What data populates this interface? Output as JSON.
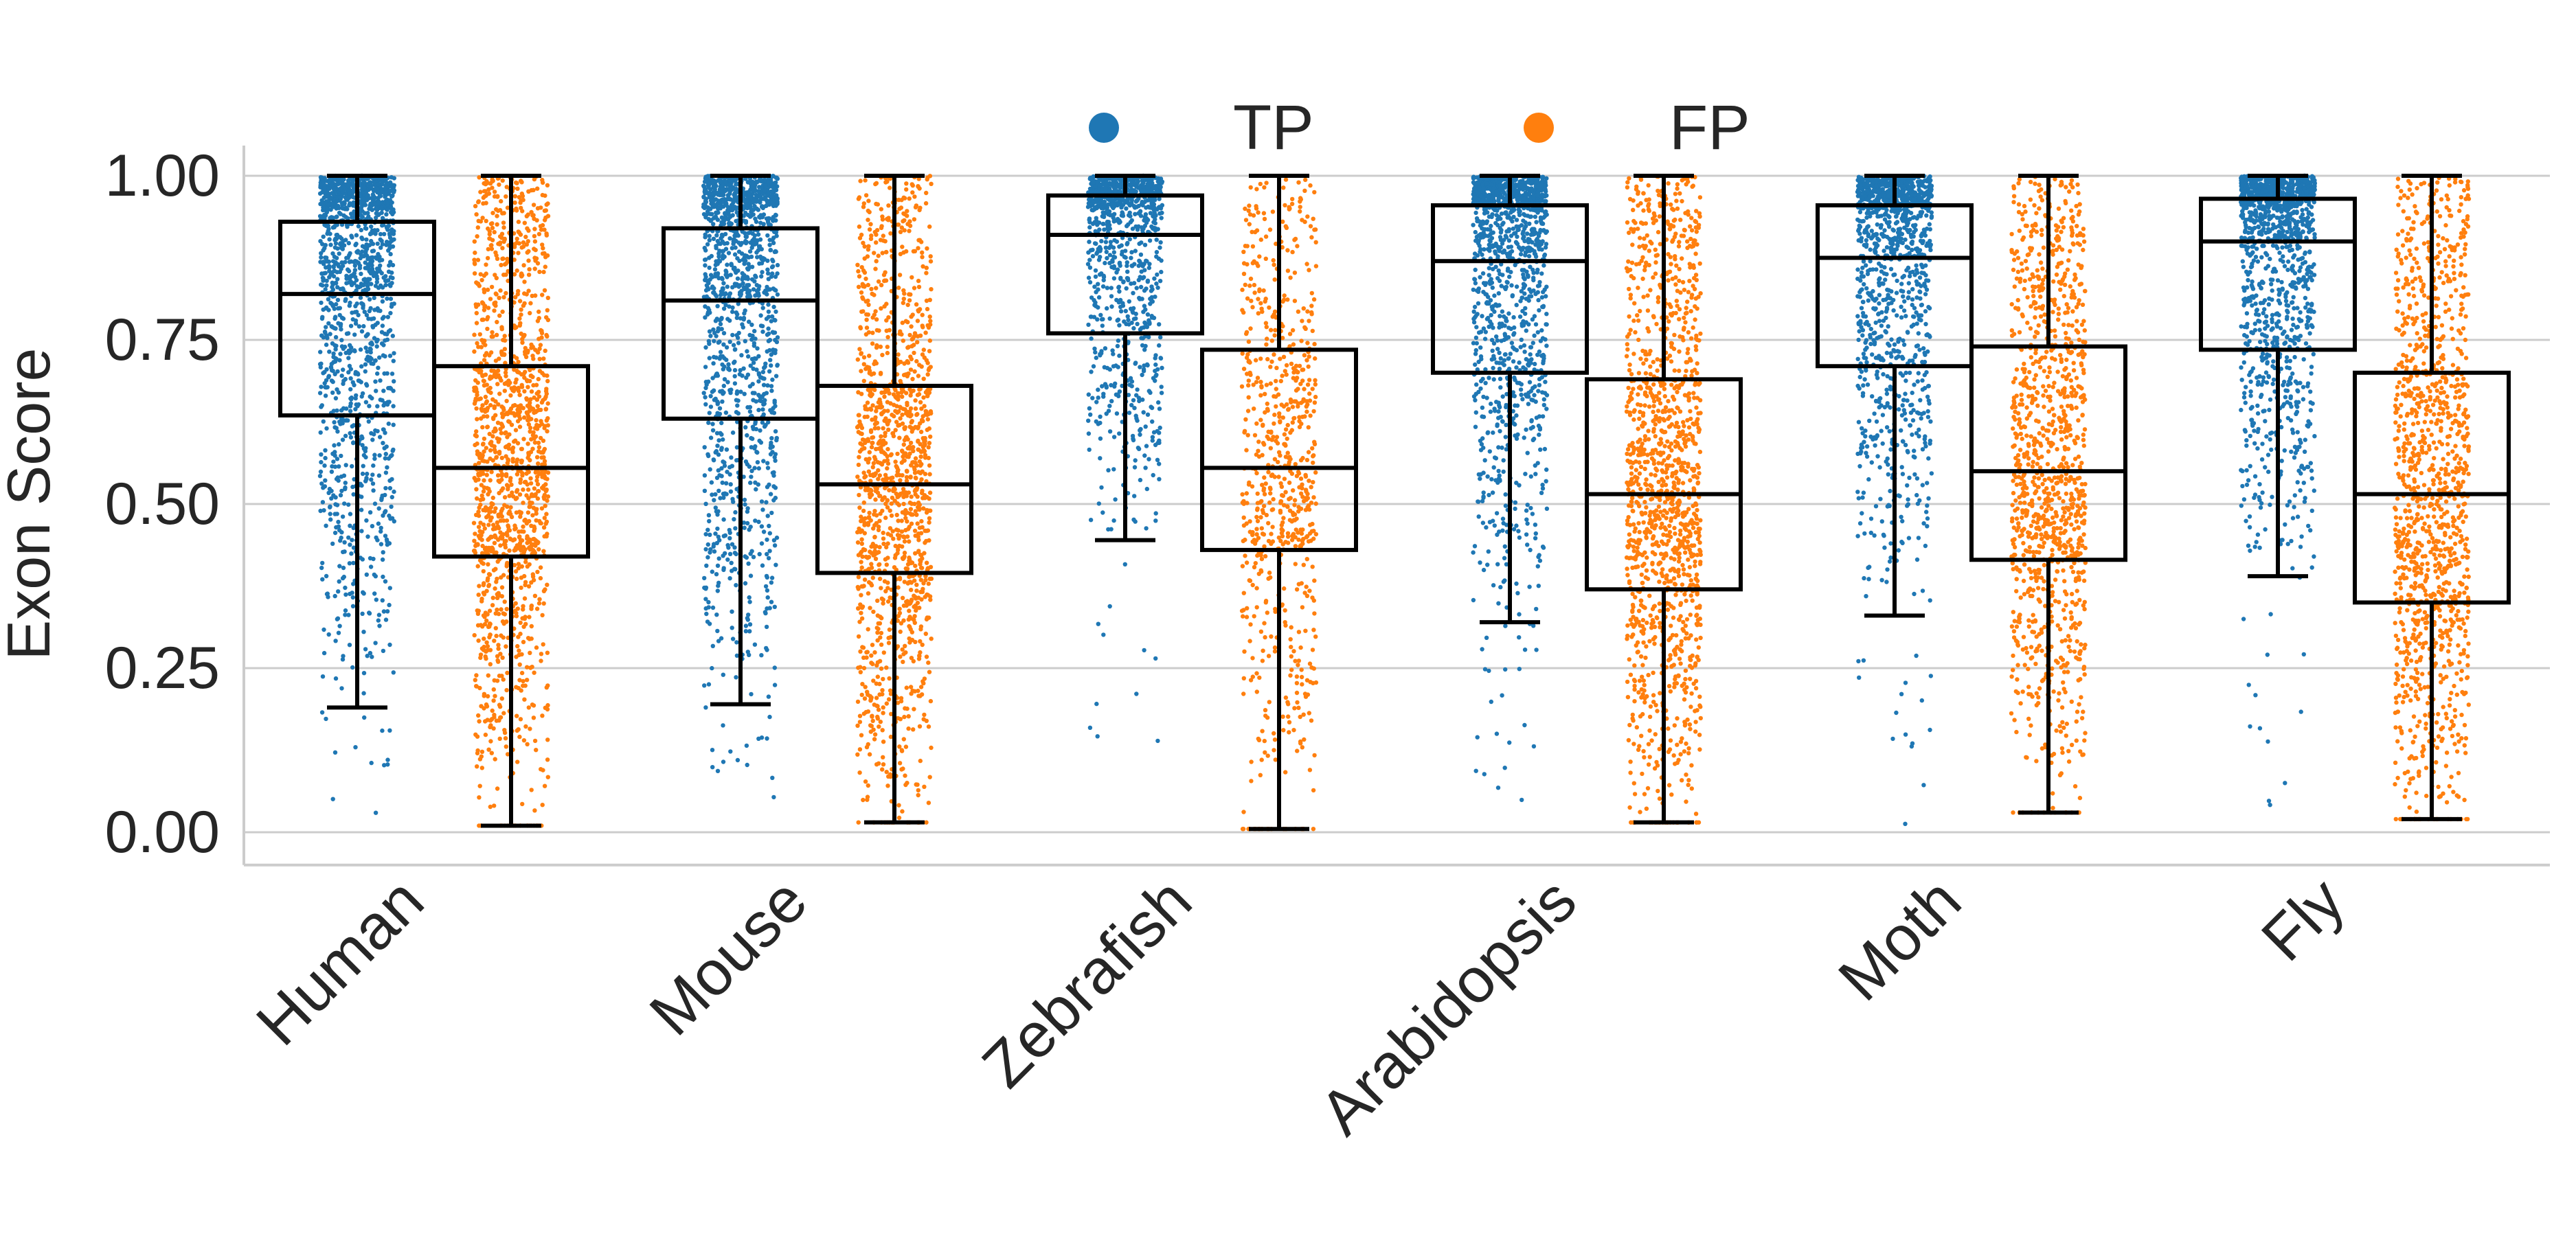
{
  "chart_data": {
    "type": "box-strip",
    "ylabel": "Exon Score",
    "xlabel": "",
    "ylim": [
      -0.05,
      1.05
    ],
    "yticks": [
      0.0,
      0.25,
      0.5,
      0.75,
      1.0
    ],
    "ytick_labels": [
      "0.00",
      "0.25",
      "0.50",
      "0.75",
      "1.00"
    ],
    "grid": "horizontal",
    "legend_position": "top-center",
    "categories": [
      "Human",
      "Mouse",
      "Zebrafish",
      "Arabidopsis",
      "Moth",
      "Fly"
    ],
    "series": [
      {
        "name": "TP",
        "color": "#1f77b4",
        "boxes": [
          {
            "whisker_low": 0.19,
            "q1": 0.635,
            "median": 0.82,
            "q3": 0.93,
            "whisker_high": 1.0,
            "min_point": 0.0
          },
          {
            "whisker_low": 0.195,
            "q1": 0.63,
            "median": 0.81,
            "q3": 0.92,
            "whisker_high": 1.0,
            "min_point": 0.03
          },
          {
            "whisker_low": 0.445,
            "q1": 0.76,
            "median": 0.91,
            "q3": 0.97,
            "whisker_high": 1.0,
            "min_point": 0.11
          },
          {
            "whisker_low": 0.32,
            "q1": 0.7,
            "median": 0.87,
            "q3": 0.955,
            "whisker_high": 1.0,
            "min_point": 0.04
          },
          {
            "whisker_low": 0.33,
            "q1": 0.71,
            "median": 0.875,
            "q3": 0.955,
            "whisker_high": 1.0,
            "min_point": 0.0
          },
          {
            "whisker_low": 0.39,
            "q1": 0.735,
            "median": 0.9,
            "q3": 0.965,
            "whisker_high": 1.0,
            "min_point": 0.03
          }
        ]
      },
      {
        "name": "FP",
        "color": "#ff7f0e",
        "boxes": [
          {
            "whisker_low": 0.01,
            "q1": 0.42,
            "median": 0.555,
            "q3": 0.71,
            "whisker_high": 1.0,
            "min_point": 0.01
          },
          {
            "whisker_low": 0.015,
            "q1": 0.395,
            "median": 0.53,
            "q3": 0.68,
            "whisker_high": 1.0,
            "min_point": 0.015
          },
          {
            "whisker_low": 0.005,
            "q1": 0.43,
            "median": 0.555,
            "q3": 0.735,
            "whisker_high": 1.0,
            "min_point": 0.005
          },
          {
            "whisker_low": 0.015,
            "q1": 0.37,
            "median": 0.515,
            "q3": 0.69,
            "whisker_high": 1.0,
            "min_point": 0.015
          },
          {
            "whisker_low": 0.03,
            "q1": 0.415,
            "median": 0.55,
            "q3": 0.74,
            "whisker_high": 1.0,
            "min_point": 0.03
          },
          {
            "whisker_low": 0.02,
            "q1": 0.35,
            "median": 0.515,
            "q3": 0.7,
            "whisker_high": 1.0,
            "min_point": 0.02
          }
        ]
      }
    ]
  }
}
